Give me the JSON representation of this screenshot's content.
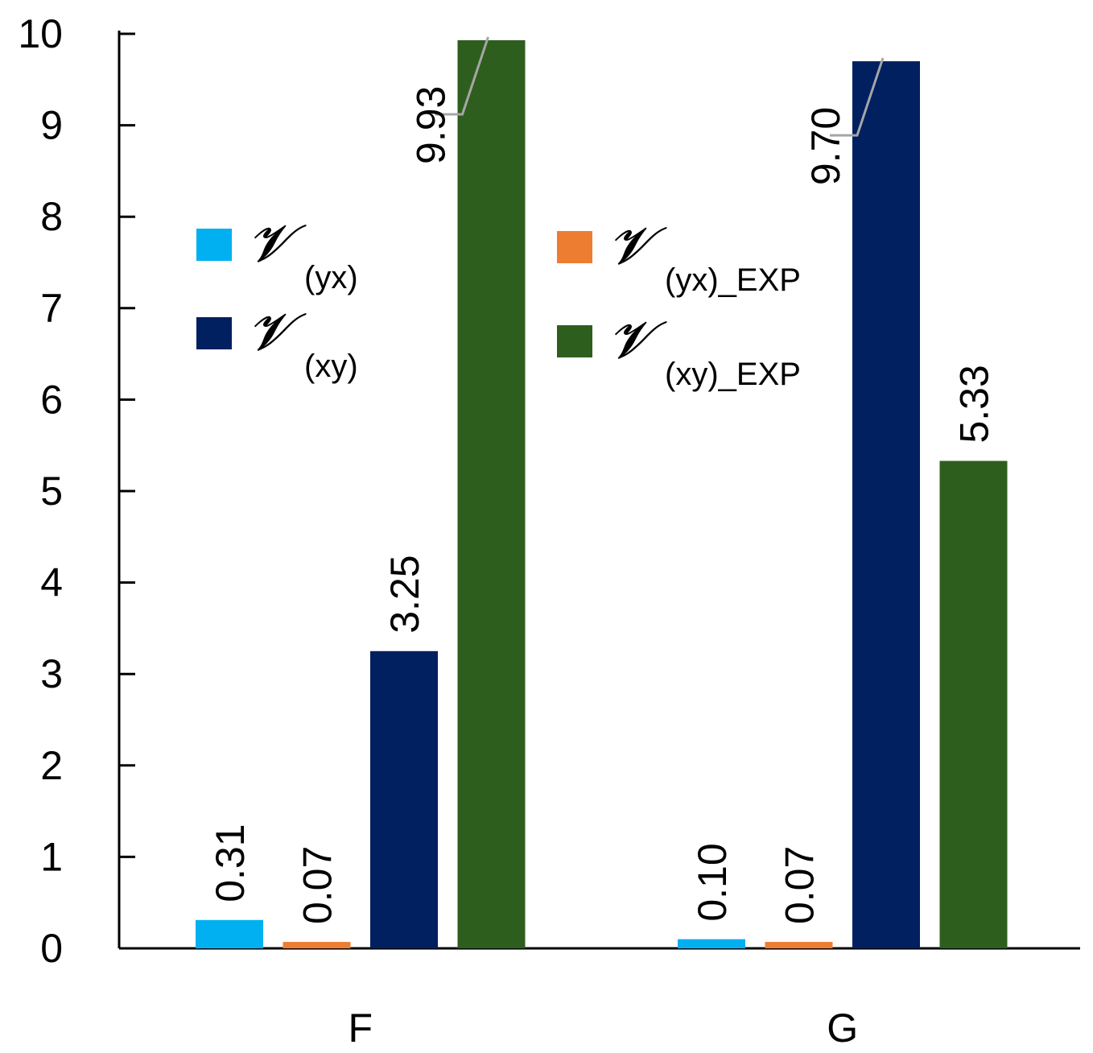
{
  "chart_data": {
    "type": "bar",
    "title": "",
    "xlabel": "",
    "ylabel": "",
    "ylim": [
      0,
      10
    ],
    "yticks": [
      "0",
      "1",
      "2",
      "3",
      "4",
      "5",
      "6",
      "7",
      "8",
      "9",
      "10"
    ],
    "categories": [
      "F",
      "G"
    ],
    "series": [
      {
        "name": "yx",
        "symbol": "𝓥",
        "subscript": "(yx)",
        "color": "#00b0f0",
        "values": [
          0.31,
          0.1
        ],
        "labels": [
          "0.31",
          "0.10"
        ]
      },
      {
        "name": "yx_EXP",
        "symbol": "𝓥",
        "subscript": "(yx)_EXP",
        "color": "#ed7d31",
        "values": [
          0.07,
          0.07
        ],
        "labels": [
          "0.07",
          "0.07"
        ]
      },
      {
        "name": "xy",
        "symbol": "𝓥",
        "subscript": "(xy)",
        "color": "#002060",
        "values": [
          3.25,
          9.7
        ],
        "labels": [
          "3.25",
          "9.70"
        ]
      },
      {
        "name": "xy_EXP",
        "symbol": "𝓥",
        "subscript": "(xy)_EXP",
        "color": "#2e5e1e",
        "values": [
          9.93,
          5.33
        ],
        "labels": [
          "9.93",
          "5.33"
        ]
      }
    ],
    "legend_position": "top-left, two columns",
    "grid": false
  }
}
